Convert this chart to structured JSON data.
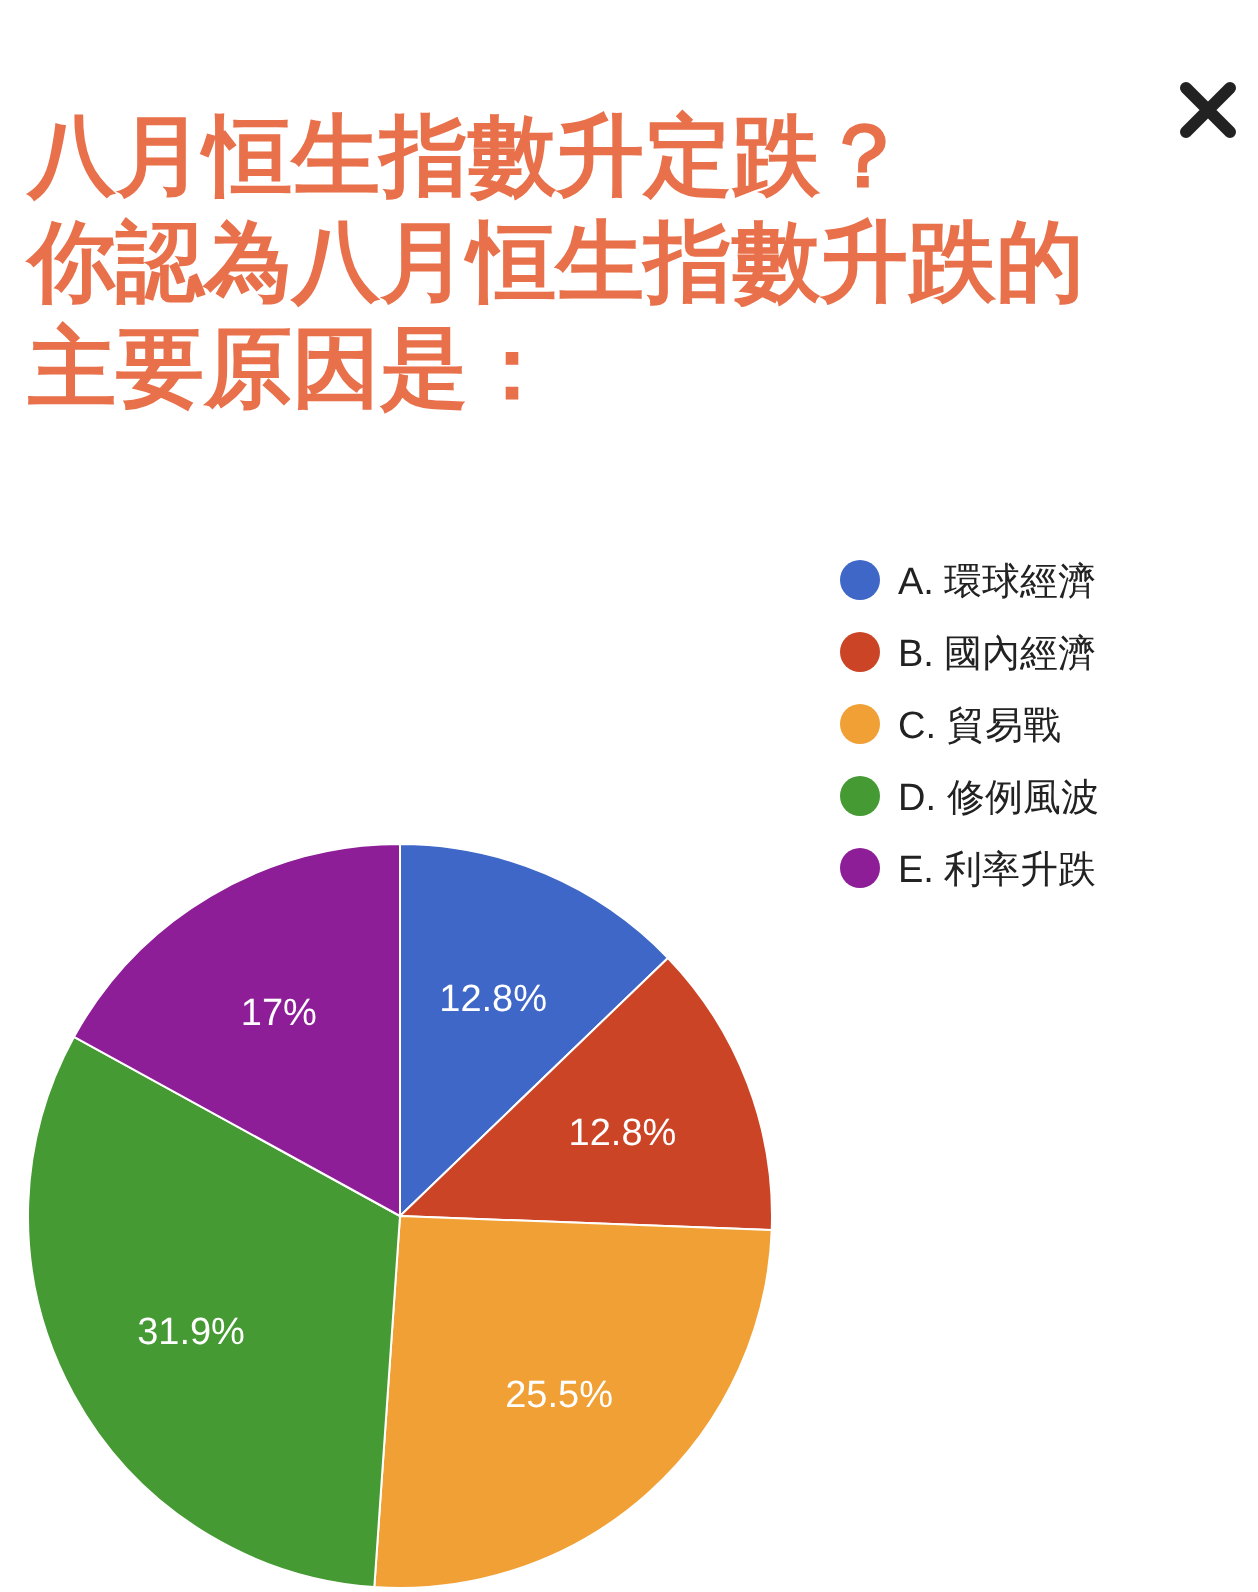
{
  "chart_data": {
    "type": "pie",
    "title": "八月恒生指數升定跌？",
    "subtitle": "你認為八月恒生指數升跌的主要原因是：",
    "categories": [
      "A. 環球經濟",
      "B. 國內經濟",
      "C. 貿易戰",
      "D. 修例風波",
      "E. 利率升跌"
    ],
    "values": [
      12.8,
      12.8,
      25.5,
      31.9,
      17
    ],
    "colors": [
      "#3f67c8",
      "#cc4426",
      "#f0a034",
      "#459a33",
      "#8d1e98"
    ],
    "value_labels": [
      "12.8%",
      "12.8%",
      "25.5%",
      "31.9%",
      "17%"
    ],
    "legend": "top right"
  }
}
